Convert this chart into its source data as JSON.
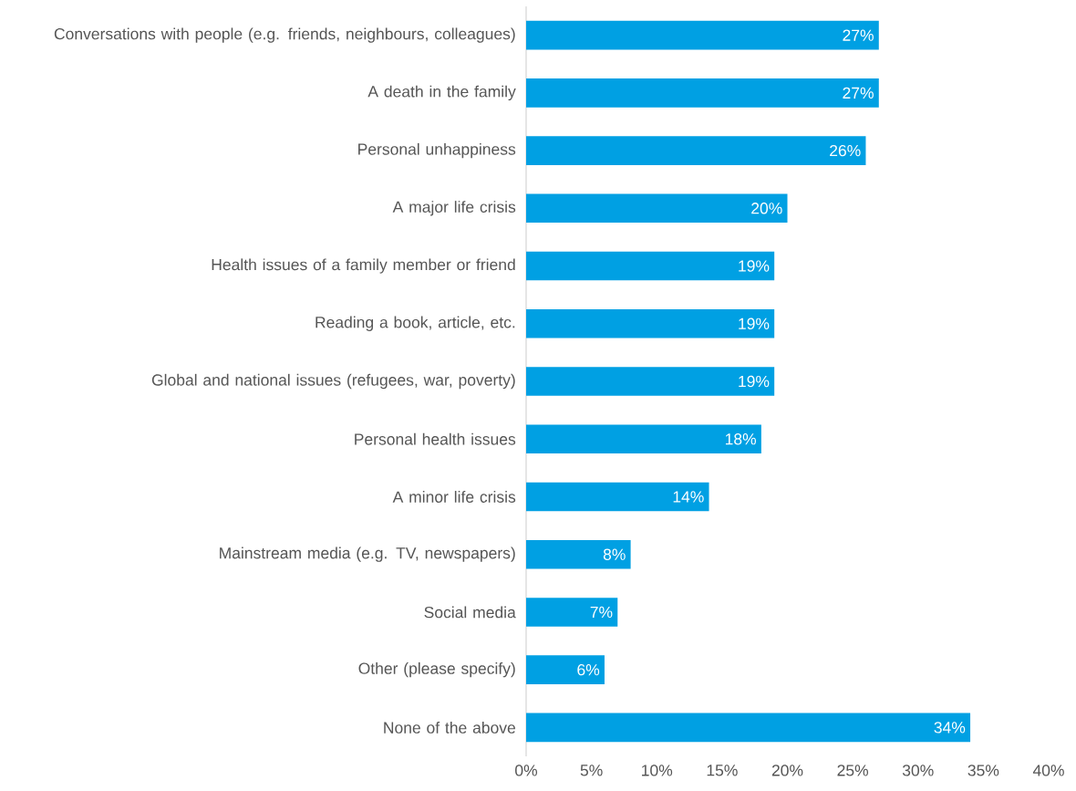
{
  "chart_data": {
    "type": "bar",
    "orientation": "horizontal",
    "categories": [
      "Conversations with people (e.g. friends, neighbours, colleagues)",
      "A death in the family",
      "Personal unhappiness",
      "A major life crisis",
      "Health issues of a family member or friend",
      "Reading a book, article, etc.",
      "Global and national issues (refugees, war, poverty)",
      "Personal health issues",
      "A minor life crisis",
      "Mainstream media (e.g. TV, newspapers)",
      "Social media",
      "Other (please specify)",
      "None of the above"
    ],
    "values": [
      27,
      27,
      26,
      20,
      19,
      19,
      19,
      18,
      14,
      8,
      7,
      6,
      34
    ],
    "value_labels": [
      "27%",
      "27%",
      "26%",
      "20%",
      "19%",
      "19%",
      "19%",
      "18%",
      "14%",
      "8%",
      "7%",
      "6%",
      "34%"
    ],
    "color": "#00a0e3",
    "xlim": [
      0,
      40
    ],
    "xticks": [
      {
        "value": 0,
        "label": "0%"
      },
      {
        "value": 5,
        "label": "5%"
      },
      {
        "value": 10,
        "label": "10%"
      },
      {
        "value": 15,
        "label": "15%"
      },
      {
        "value": 20,
        "label": "20%"
      },
      {
        "value": 25,
        "label": "25%"
      },
      {
        "value": 30,
        "label": "30%"
      },
      {
        "value": 35,
        "label": "35%"
      },
      {
        "value": 40,
        "label": "40%"
      }
    ],
    "grid": false
  }
}
